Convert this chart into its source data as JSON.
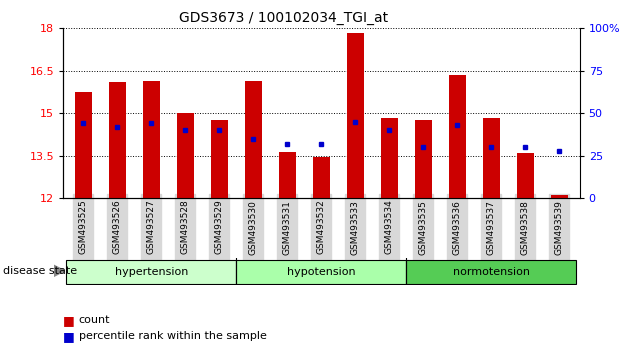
{
  "title": "GDS3673 / 100102034_TGI_at",
  "samples": [
    "GSM493525",
    "GSM493526",
    "GSM493527",
    "GSM493528",
    "GSM493529",
    "GSM493530",
    "GSM493531",
    "GSM493532",
    "GSM493533",
    "GSM493534",
    "GSM493535",
    "GSM493536",
    "GSM493537",
    "GSM493538",
    "GSM493539"
  ],
  "bar_heights": [
    15.75,
    16.1,
    16.15,
    15.0,
    14.75,
    16.15,
    13.65,
    13.45,
    17.85,
    14.85,
    14.75,
    16.35,
    14.85,
    13.6,
    12.1
  ],
  "blue_values": [
    44,
    42,
    44,
    40,
    40,
    35,
    32,
    32,
    45,
    40,
    30,
    43,
    30,
    30,
    28
  ],
  "ylim_left": [
    12,
    18
  ],
  "ylim_right": [
    0,
    100
  ],
  "yticks_left": [
    12,
    13.5,
    15,
    16.5,
    18
  ],
  "yticks_right": [
    0,
    25,
    50,
    75,
    100
  ],
  "bar_color": "#cc0000",
  "blue_color": "#0000cc",
  "groups": [
    {
      "label": "hypertension",
      "start": 0,
      "end": 5
    },
    {
      "label": "hypotension",
      "start": 5,
      "end": 10
    },
    {
      "label": "normotension",
      "start": 10,
      "end": 15
    }
  ],
  "group_colors": [
    "#ccffcc",
    "#aaffaa",
    "#55cc55"
  ],
  "disease_label": "disease state",
  "legend_count": "count",
  "legend_percentile": "percentile rank within the sample",
  "bar_width": 0.5,
  "base_value": 12
}
